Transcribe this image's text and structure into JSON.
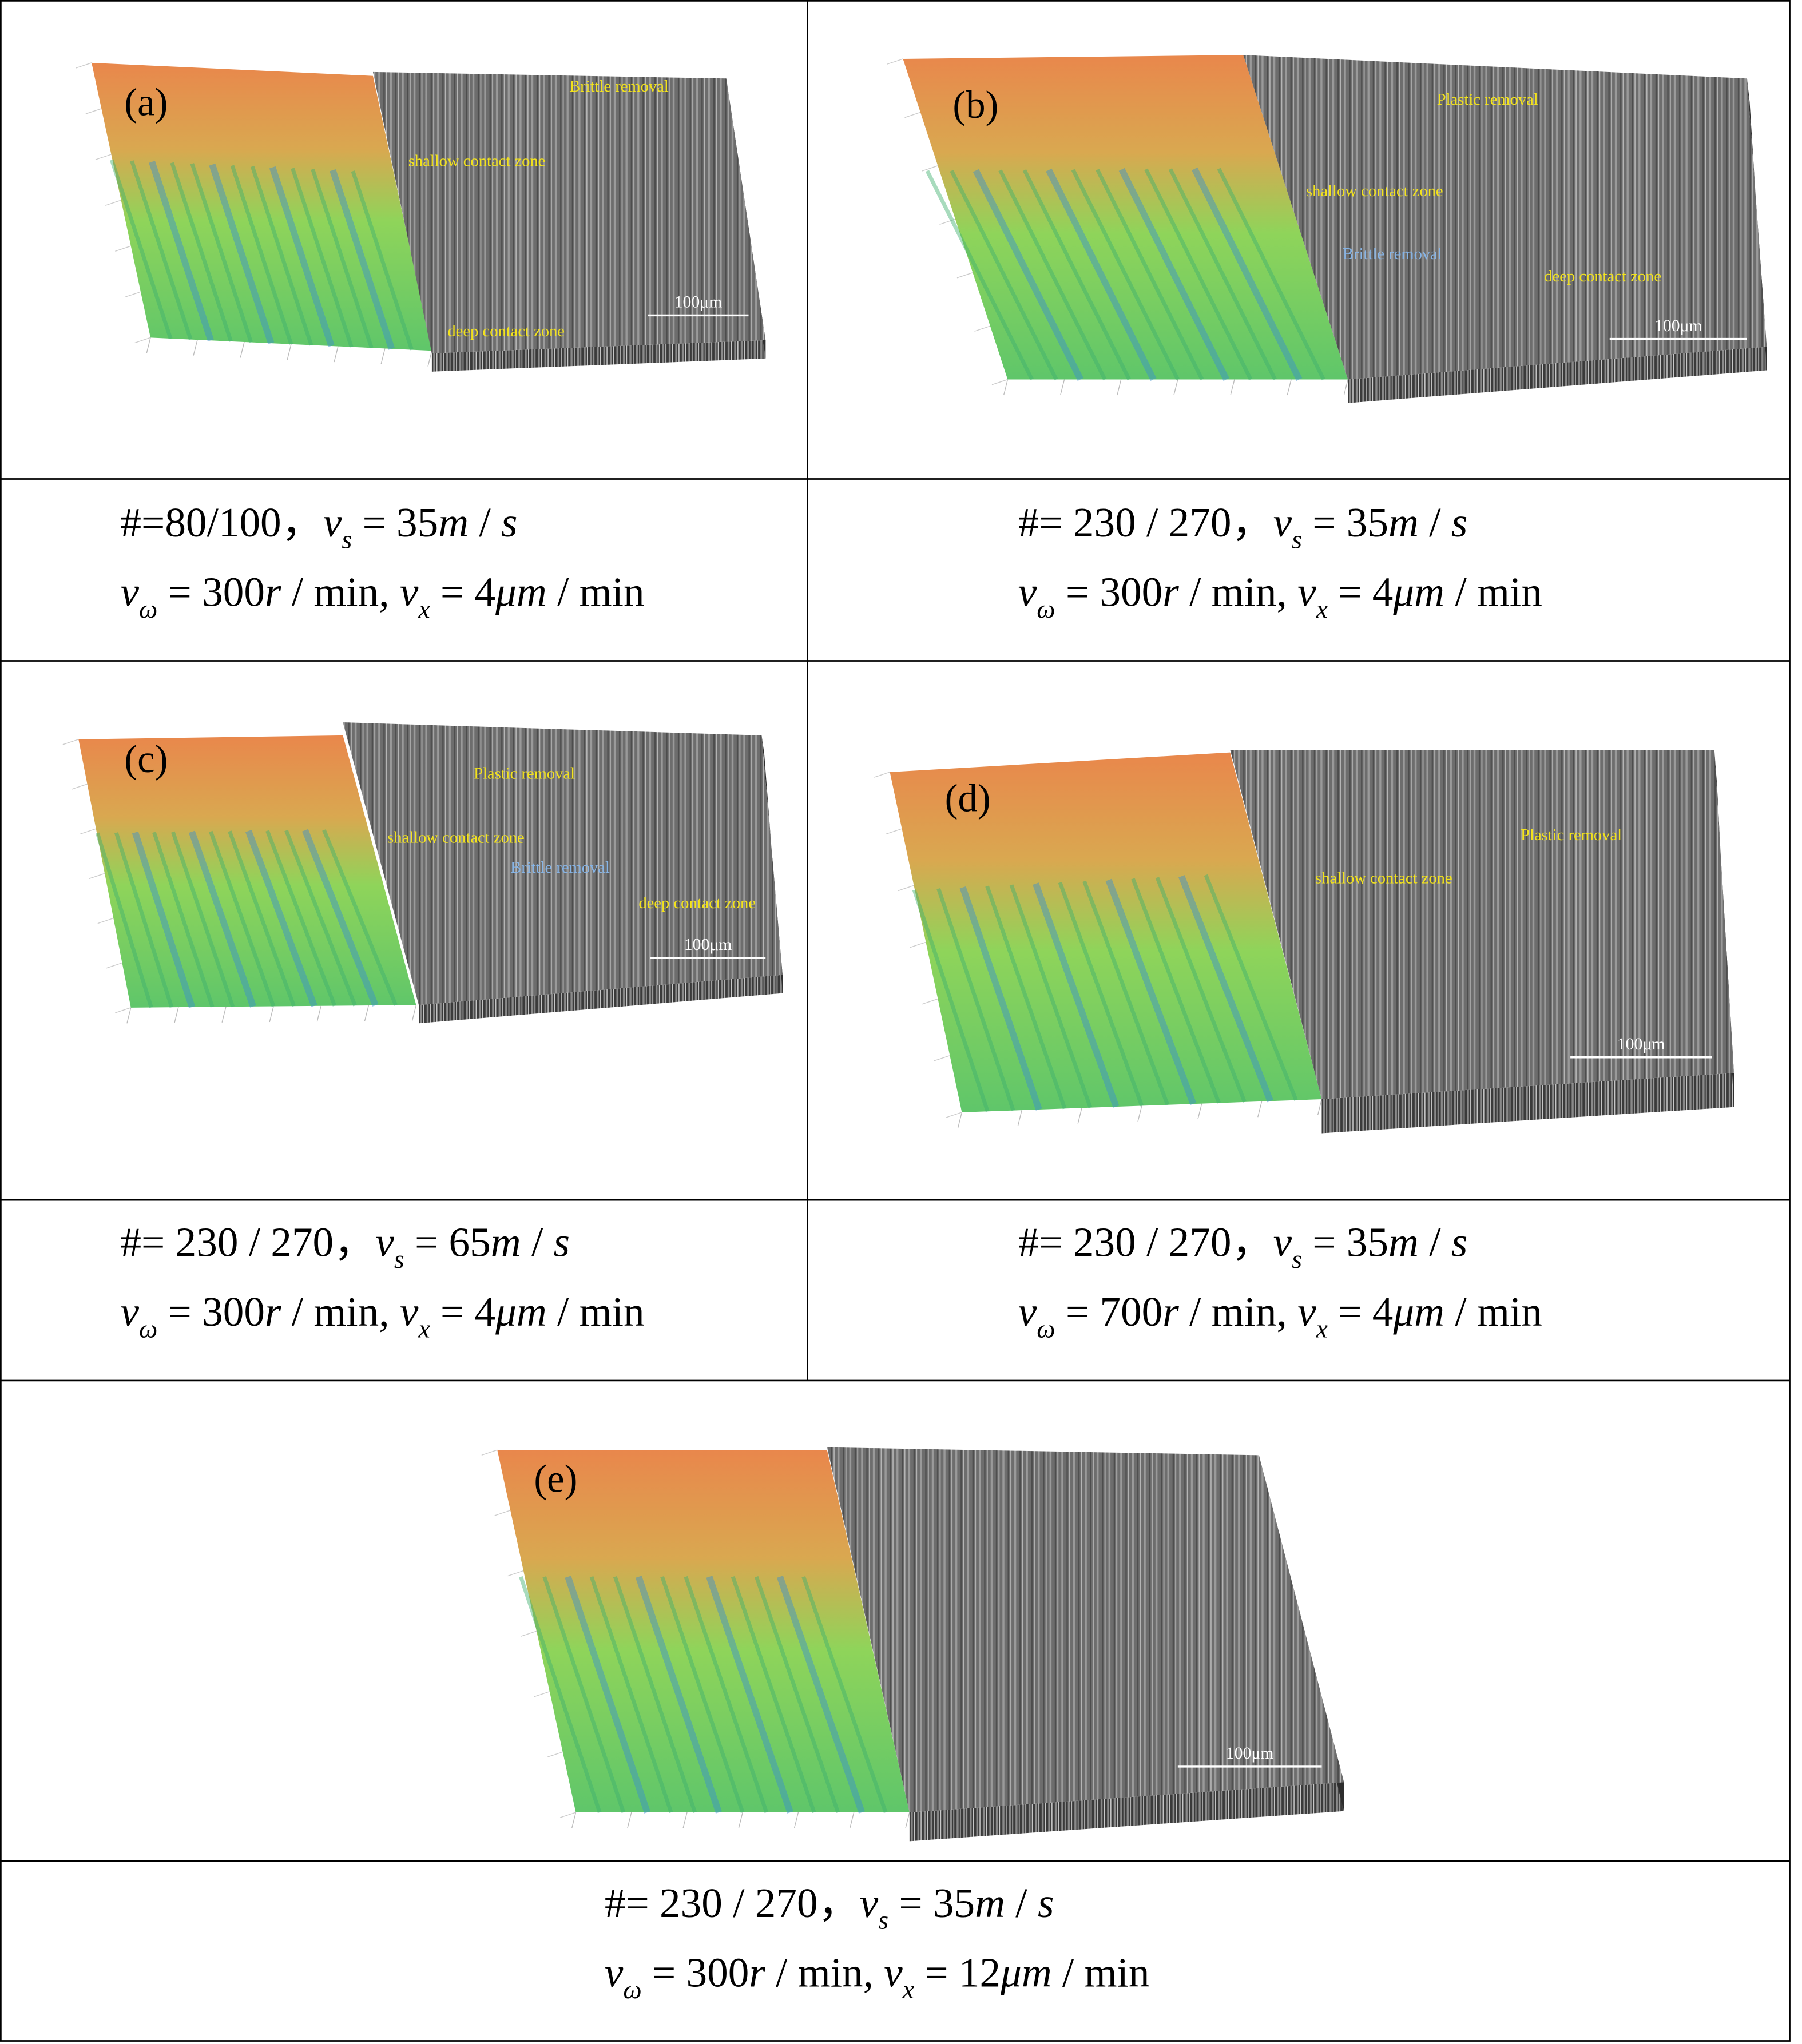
{
  "panels": [
    {
      "label": "(a)",
      "scale_bar": "100μm",
      "annotations": [
        {
          "text": "Brittle removal",
          "color": "#f2e21c"
        },
        {
          "text": "shallow contact zone",
          "color": "#f2e21c"
        },
        {
          "text": "deep contact zone",
          "color": "#f2e21c"
        }
      ],
      "caption": [
        [
          [
            "#=80/100，",
            ""
          ],
          [
            "v",
            "i"
          ],
          [
            "s",
            "s"
          ],
          [
            " = 35",
            ""
          ],
          [
            "m",
            "i"
          ],
          [
            " / ",
            ""
          ],
          [
            "s",
            "i"
          ]
        ],
        [
          [
            "v",
            "i"
          ],
          [
            "ω",
            "s"
          ],
          [
            " = 300",
            ""
          ],
          [
            "r",
            "i"
          ],
          [
            " / min, ",
            ""
          ],
          [
            "v",
            "i"
          ],
          [
            "x",
            "s"
          ],
          [
            " = 4",
            ""
          ],
          [
            "μm",
            "i"
          ],
          [
            " / min",
            ""
          ]
        ]
      ]
    },
    {
      "label": "(b)",
      "scale_bar": "100μm",
      "annotations": [
        {
          "text": "Plastic removal",
          "color": "#f2e21c"
        },
        {
          "text": "shallow contact zone",
          "color": "#f2e21c"
        },
        {
          "text": "Brittle removal",
          "color": "#86b4e6"
        },
        {
          "text": "deep contact zone",
          "color": "#f2e21c"
        }
      ],
      "caption": [
        [
          [
            "#= 230 / 270，",
            ""
          ],
          [
            "v",
            "i"
          ],
          [
            "s",
            "s"
          ],
          [
            " = 35",
            ""
          ],
          [
            "m",
            "i"
          ],
          [
            " / ",
            ""
          ],
          [
            "s",
            "i"
          ]
        ],
        [
          [
            "v",
            "i"
          ],
          [
            "ω",
            "s"
          ],
          [
            " = 300",
            ""
          ],
          [
            "r",
            "i"
          ],
          [
            " / min, ",
            ""
          ],
          [
            "v",
            "i"
          ],
          [
            "x",
            "s"
          ],
          [
            " = 4",
            ""
          ],
          [
            "μm",
            "i"
          ],
          [
            " / min",
            ""
          ]
        ]
      ]
    },
    {
      "label": "(c)",
      "scale_bar": "100μm",
      "annotations": [
        {
          "text": "Plastic removal",
          "color": "#f2e21c"
        },
        {
          "text": "shallow contact zone",
          "color": "#f2e21c"
        },
        {
          "text": "Brittle removal",
          "color": "#86b4e6"
        },
        {
          "text": "deep contact zone",
          "color": "#f2e21c"
        }
      ],
      "caption": [
        [
          [
            "#= 230 / 270，",
            ""
          ],
          [
            "v",
            "i"
          ],
          [
            "s",
            "s"
          ],
          [
            " = 65",
            ""
          ],
          [
            "m",
            "i"
          ],
          [
            " / ",
            ""
          ],
          [
            "s",
            "i"
          ]
        ],
        [
          [
            "v",
            "i"
          ],
          [
            "ω",
            "s"
          ],
          [
            " = 300",
            ""
          ],
          [
            "r",
            "i"
          ],
          [
            " / min, ",
            ""
          ],
          [
            "v",
            "i"
          ],
          [
            "x",
            "s"
          ],
          [
            " = 4",
            ""
          ],
          [
            "μm",
            "i"
          ],
          [
            " / min",
            ""
          ]
        ]
      ]
    },
    {
      "label": "(d)",
      "scale_bar": "100μm",
      "annotations": [
        {
          "text": "shallow contact zone",
          "color": "#f2e21c"
        },
        {
          "text": "Plastic removal",
          "color": "#f2e21c"
        }
      ],
      "caption": [
        [
          [
            "#= 230 / 270，",
            ""
          ],
          [
            "v",
            "i"
          ],
          [
            "s",
            "s"
          ],
          [
            " = 35",
            ""
          ],
          [
            "m",
            "i"
          ],
          [
            " / ",
            ""
          ],
          [
            "s",
            "i"
          ]
        ],
        [
          [
            "v",
            "i"
          ],
          [
            "ω",
            "s"
          ],
          [
            " = 700",
            ""
          ],
          [
            "r",
            "i"
          ],
          [
            " / min, ",
            ""
          ],
          [
            "v",
            "i"
          ],
          [
            "x",
            "s"
          ],
          [
            " = 4",
            ""
          ],
          [
            "μm",
            "i"
          ],
          [
            " / min",
            ""
          ]
        ]
      ]
    },
    {
      "label": "(e)",
      "scale_bar": "100μm",
      "annotations": [],
      "caption": [
        [
          [
            "#= 230 / 270，",
            ""
          ],
          [
            "v",
            "i"
          ],
          [
            "s",
            "s"
          ],
          [
            " = 35",
            ""
          ],
          [
            "m",
            "i"
          ],
          [
            " / ",
            ""
          ],
          [
            "s",
            "i"
          ]
        ],
        [
          [
            "v",
            "i"
          ],
          [
            "ω",
            "s"
          ],
          [
            " = 300",
            ""
          ],
          [
            "r",
            "i"
          ],
          [
            " / min, ",
            ""
          ],
          [
            "v",
            "i"
          ],
          [
            "x",
            "s"
          ],
          [
            " = 12",
            ""
          ],
          [
            "μm",
            "i"
          ],
          [
            " / min",
            ""
          ]
        ]
      ]
    }
  ]
}
